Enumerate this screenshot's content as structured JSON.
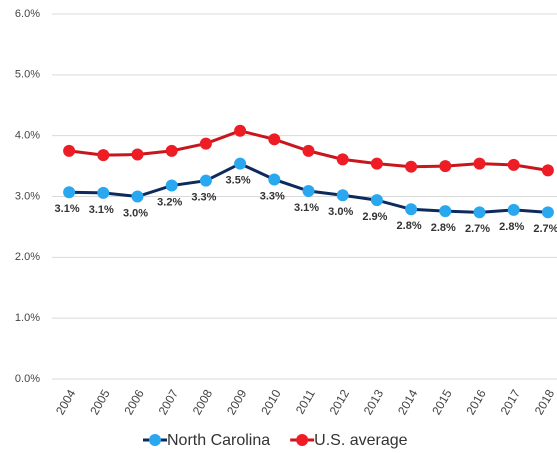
{
  "chart_data": {
    "type": "line",
    "categories": [
      "2004",
      "2005",
      "2006",
      "2007",
      "2008",
      "2009",
      "2010",
      "2011",
      "2012",
      "2013",
      "2014",
      "2015",
      "2016",
      "2017",
      "2018"
    ],
    "series": [
      {
        "name": "North Carolina",
        "color": "#0d2a5c",
        "marker_color": "#29a8f0",
        "values": [
          3.07,
          3.06,
          3.0,
          3.18,
          3.26,
          3.54,
          3.28,
          3.09,
          3.02,
          2.94,
          2.79,
          2.76,
          2.74,
          2.78,
          2.74
        ],
        "value_labels": [
          "3.1%",
          "3.1%",
          "3.0%",
          "3.2%",
          "3.3%",
          "3.5%",
          "3.3%",
          "3.1%",
          "3.0%",
          "2.9%",
          "2.8%",
          "2.8%",
          "2.7%",
          "2.8%",
          "2.7%"
        ]
      },
      {
        "name": "U.S. average",
        "color": "#c8161d",
        "marker_color": "#ee1c25",
        "values": [
          3.75,
          3.68,
          3.69,
          3.75,
          3.87,
          4.08,
          3.94,
          3.75,
          3.61,
          3.54,
          3.49,
          3.5,
          3.54,
          3.52,
          3.43
        ]
      }
    ],
    "ylim": [
      0,
      6
    ],
    "yticks": [
      {
        "value": 0,
        "label": "0.0%"
      },
      {
        "value": 1,
        "label": "1.0%"
      },
      {
        "value": 2,
        "label": "2.0%"
      },
      {
        "value": 3,
        "label": "3.0%"
      },
      {
        "value": 4,
        "label": "4.0%"
      },
      {
        "value": 5,
        "label": "5.0%"
      },
      {
        "value": 6,
        "label": "6.0%"
      }
    ],
    "grid": true,
    "legend": "bottom"
  }
}
